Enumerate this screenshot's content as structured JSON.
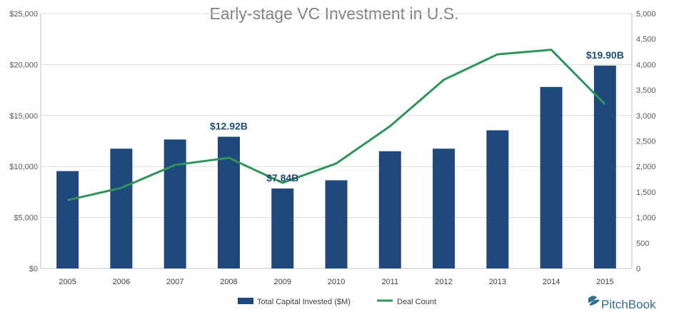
{
  "chart_data": {
    "type": "bar",
    "title": "Early-stage VC Investment in U.S.",
    "categories": [
      "2005",
      "2006",
      "2007",
      "2008",
      "2009",
      "2010",
      "2011",
      "2012",
      "2013",
      "2014",
      "2015"
    ],
    "series": [
      {
        "name": "Total Capital Invested ($M)",
        "type": "bar",
        "axis": "left",
        "color": "#1f497d",
        "values": [
          9550,
          11750,
          12650,
          12920,
          7840,
          8650,
          11500,
          11750,
          13550,
          17800,
          19900
        ]
      },
      {
        "name": "Deal Count",
        "type": "line",
        "axis": "right",
        "color": "#2e9459",
        "values": [
          1340,
          1580,
          2030,
          2170,
          1680,
          2060,
          2790,
          3700,
          4200,
          4290,
          3220
        ]
      }
    ],
    "left_axis": {
      "ylim": [
        0,
        25000
      ],
      "ticks": [
        0,
        5000,
        10000,
        15000,
        20000,
        25000
      ],
      "tick_labels": [
        "$0",
        "$5,000",
        "$10,000",
        "$15,000",
        "$20,000",
        "$25,000"
      ]
    },
    "right_axis": {
      "ylim": [
        0,
        5000
      ],
      "ticks": [
        0,
        500,
        1000,
        1500,
        2000,
        2500,
        3000,
        3500,
        4000,
        4500,
        5000
      ],
      "tick_labels": [
        "0",
        "500",
        "1,000",
        "1,500",
        "2,000",
        "2,500",
        "3,000",
        "3,500",
        "4,000",
        "4,500",
        "5,000"
      ]
    },
    "annotations": [
      {
        "category": "2008",
        "text": "$12.92B"
      },
      {
        "category": "2009",
        "text": "$7.84B"
      },
      {
        "category": "2015",
        "text": "$19.90B"
      }
    ],
    "grid": true,
    "legend_position": "bottom"
  },
  "branding": {
    "logo_text": "PitchBook"
  }
}
